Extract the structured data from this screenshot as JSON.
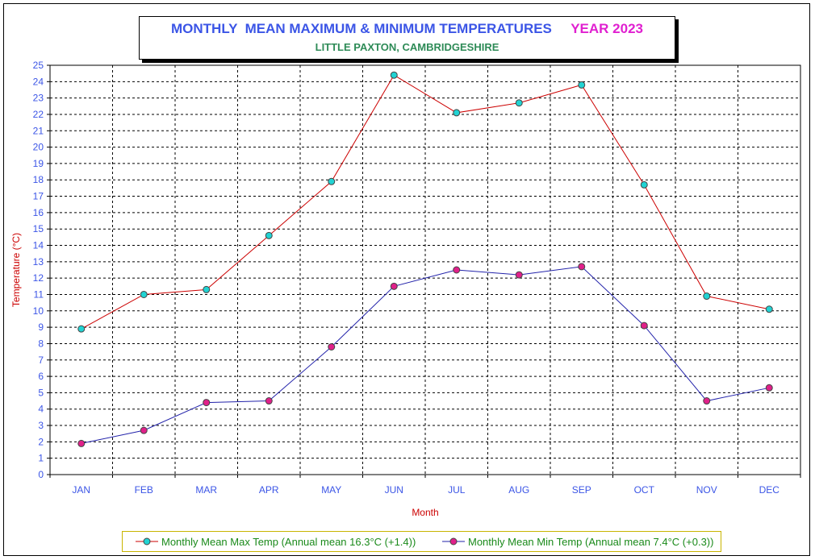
{
  "title": {
    "main": "MONTHLY  MEAN MAXIMUM & MINIMUM TEMPERATURES",
    "year": "YEAR 2023",
    "subtitle": "LITTLE PAXTON, CAMBRIDGESHIRE"
  },
  "colors": {
    "title": "#3b55e6",
    "year": "#e020d0",
    "subtitle": "#2e8b57",
    "axis_text": "#3b55e6",
    "axis_label": "#cc0000",
    "max_line": "#cc0000",
    "max_marker": "#22d3d3",
    "min_line": "#2222aa",
    "min_marker": "#e0208a",
    "legend_text": "#1a8a1a",
    "legend_border": "#c8b400"
  },
  "chart_data": {
    "type": "line",
    "categories": [
      "JAN",
      "FEB",
      "MAR",
      "APR",
      "MAY",
      "JUN",
      "JUL",
      "AUG",
      "SEP",
      "OCT",
      "NOV",
      "DEC"
    ],
    "xlabel": "Month",
    "ylabel": "Temperature (°C)",
    "ylim": [
      0,
      25
    ],
    "ytick_step": 1,
    "grid": true,
    "legend_position": "bottom",
    "series": [
      {
        "name": "Monthly Mean Max Temp (Annual mean 16.3°C (+1.4))",
        "values": [
          8.9,
          11.0,
          11.3,
          14.6,
          17.9,
          24.4,
          22.1,
          22.7,
          23.8,
          17.7,
          10.9,
          10.1
        ]
      },
      {
        "name": "Monthly Mean Min Temp (Annual mean 7.4°C (+0.3))",
        "values": [
          1.9,
          2.7,
          4.4,
          4.5,
          7.8,
          11.5,
          12.5,
          12.2,
          12.7,
          9.1,
          4.5,
          5.3
        ]
      }
    ]
  }
}
